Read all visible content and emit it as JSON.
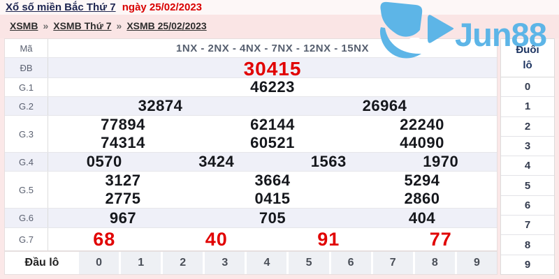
{
  "header": {
    "title_link": "Xổ số miền Bắc Thứ 7",
    "title_date": "ngày 25/02/2023"
  },
  "breadcrumb": {
    "separator": "»",
    "items": [
      "XSMB",
      "XSMB Thứ 7",
      "XSMB 25/02/2023"
    ]
  },
  "logo": {
    "brand": "Jun88",
    "icon": "jun88-play-icon",
    "color": "#5db5e7"
  },
  "results_table": {
    "rows": [
      {
        "label": "Mã",
        "style": "code",
        "lines": [
          [
            "1NX - 2NX - 4NX - 7NX - 12NX - 15NX"
          ]
        ]
      },
      {
        "label": "ĐB",
        "style": "special",
        "lines": [
          [
            "30415"
          ]
        ]
      },
      {
        "label": "G.1",
        "style": "normal",
        "lines": [
          [
            "46223"
          ]
        ]
      },
      {
        "label": "G.2",
        "style": "normal",
        "lines": [
          [
            "32874",
            "26964"
          ]
        ]
      },
      {
        "label": "G.3",
        "style": "normal",
        "lines": [
          [
            "77894",
            "62144",
            "22240"
          ],
          [
            "74314",
            "60521",
            "44090"
          ]
        ]
      },
      {
        "label": "G.4",
        "style": "normal",
        "lines": [
          [
            "0570",
            "3424",
            "1563",
            "1970"
          ]
        ]
      },
      {
        "label": "G.5",
        "style": "normal",
        "lines": [
          [
            "3127",
            "3664",
            "5294"
          ],
          [
            "2775",
            "0415",
            "2860"
          ]
        ]
      },
      {
        "label": "G.6",
        "style": "normal",
        "lines": [
          [
            "967",
            "705",
            "404"
          ]
        ]
      },
      {
        "label": "G.7",
        "style": "red",
        "lines": [
          [
            "68",
            "40",
            "91",
            "77"
          ]
        ]
      }
    ],
    "dau_lo": {
      "label": "Đầu lô",
      "digits": [
        "0",
        "1",
        "2",
        "3",
        "4",
        "5",
        "6",
        "7",
        "8",
        "9"
      ]
    },
    "duoi_lo": {
      "header": [
        "Đuôi",
        "lô"
      ],
      "digits": [
        "0",
        "1",
        "2",
        "3",
        "4",
        "5",
        "6",
        "7",
        "8",
        "9"
      ]
    }
  },
  "colors": {
    "page_bg": "#fbe8e8",
    "topbar_bg": "#fdf7f7",
    "stripe_bg": "#eff0f8",
    "accent_red": "#e10000",
    "brand_blue": "#5db5e7",
    "duoi_header_text": "#1d3461"
  }
}
